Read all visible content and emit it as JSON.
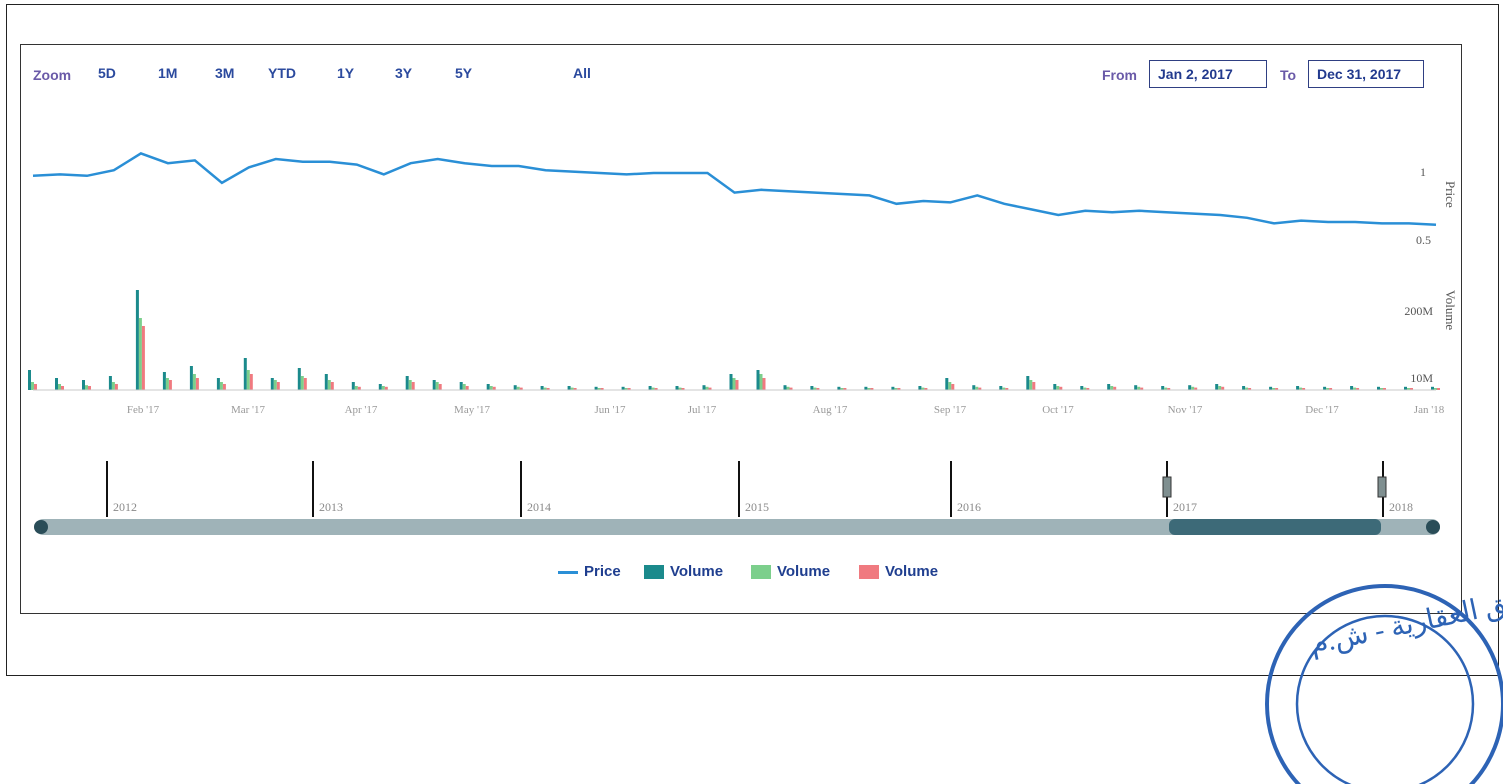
{
  "toolbar": {
    "zoom_label": "Zoom",
    "buttons": [
      "5D",
      "1M",
      "3M",
      "YTD",
      "1Y",
      "3Y",
      "5Y",
      "All"
    ],
    "from_label": "From",
    "from_value": "Jan 2, 2017",
    "to_label": "To",
    "to_value": "Dec 31, 2017"
  },
  "legend": {
    "price": "Price",
    "volume_1": "Volume",
    "volume_2": "Volume",
    "volume_3": "Volume"
  },
  "colors": {
    "price": "#2a8fd6",
    "volume_1": "#1b8a8c",
    "volume_2": "#7ccf8c",
    "volume_3": "#f07a80",
    "accent": "#2b4a9e"
  },
  "stamp_text": "لق العقارية - ش.م",
  "chart_data": {
    "type": "line",
    "price": {
      "ylabel": "Price",
      "ytick_labels": [
        "1",
        "0.5"
      ],
      "x": [
        "Jan 2",
        "Jan 9",
        "Jan 16",
        "Jan 23",
        "Jan 30",
        "Feb 6",
        "Feb 13",
        "Feb 20",
        "Feb 27",
        "Mar 6",
        "Mar 13",
        "Mar 20",
        "Mar 27",
        "Apr 3",
        "Apr 10",
        "Apr 17",
        "Apr 24",
        "May 1",
        "May 8",
        "May 15",
        "May 22",
        "May 29",
        "Jun 5",
        "Jun 12",
        "Jun 19",
        "Jun 26",
        "Jul 3",
        "Jul 10",
        "Jul 17",
        "Jul 24",
        "Jul 31",
        "Aug 7",
        "Aug 14",
        "Aug 21",
        "Aug 28",
        "Sep 4",
        "Sep 11",
        "Sep 18",
        "Sep 25",
        "Oct 2",
        "Oct 9",
        "Oct 16",
        "Oct 23",
        "Oct 30",
        "Nov 6",
        "Nov 13",
        "Nov 20",
        "Nov 27",
        "Dec 4",
        "Dec 11",
        "Dec 18",
        "Dec 25",
        "Dec 31"
      ],
      "values": [
        0.98,
        0.99,
        0.98,
        1.02,
        1.14,
        1.07,
        1.09,
        0.93,
        1.04,
        1.1,
        1.08,
        1.08,
        1.06,
        0.99,
        1.07,
        1.1,
        1.07,
        1.05,
        1.05,
        1.02,
        1.01,
        1.0,
        0.99,
        1.0,
        1.0,
        1.0,
        0.86,
        0.88,
        0.87,
        0.86,
        0.85,
        0.84,
        0.78,
        0.8,
        0.79,
        0.84,
        0.78,
        0.74,
        0.7,
        0.73,
        0.72,
        0.73,
        0.72,
        0.71,
        0.7,
        0.68,
        0.64,
        0.66,
        0.65,
        0.65,
        0.64,
        0.64,
        0.63
      ]
    },
    "volume": {
      "ylabel": "Volume",
      "ytick_labels": [
        "200M",
        "10M"
      ],
      "series": [
        {
          "values": [
            50,
            30,
            25,
            35,
            250,
            45,
            60,
            30,
            80,
            30,
            55,
            40,
            20,
            15,
            35,
            25,
            20,
            15,
            12,
            10,
            10,
            8,
            8,
            10,
            10,
            12,
            40,
            50,
            12,
            10,
            8,
            8,
            8,
            10,
            30,
            12,
            10,
            35,
            15,
            10,
            15,
            12,
            10,
            12,
            15,
            10,
            8,
            10,
            8,
            10,
            8,
            8,
            8
          ]
        },
        {
          "values": [
            20,
            15,
            12,
            20,
            180,
            30,
            40,
            20,
            50,
            25,
            35,
            25,
            10,
            10,
            25,
            20,
            15,
            10,
            8,
            6,
            6,
            5,
            5,
            6,
            6,
            8,
            30,
            40,
            8,
            6,
            5,
            5,
            5,
            6,
            20,
            8,
            6,
            25,
            10,
            6,
            10,
            8,
            6,
            8,
            10,
            6,
            5,
            6,
            5,
            6,
            5,
            5,
            5
          ]
        },
        {
          "values": [
            15,
            10,
            10,
            15,
            160,
            25,
            30,
            15,
            40,
            20,
            30,
            20,
            8,
            8,
            20,
            15,
            10,
            8,
            6,
            5,
            5,
            4,
            4,
            5,
            5,
            6,
            25,
            30,
            6,
            5,
            4,
            4,
            4,
            5,
            15,
            6,
            5,
            20,
            8,
            5,
            8,
            6,
            5,
            6,
            8,
            5,
            4,
            5,
            4,
            5,
            4,
            4,
            4
          ]
        }
      ]
    },
    "x_tick_labels": [
      "Feb '17",
      "Mar '17",
      "Apr '17",
      "May '17",
      "Jun '17",
      "Jul '17",
      "Aug '17",
      "Sep '17",
      "Oct '17",
      "Nov '17",
      "Dec '17",
      "Jan '18"
    ],
    "navigator": {
      "year_labels": [
        "2012",
        "2013",
        "2014",
        "2015",
        "2016",
        "2017",
        "2018"
      ],
      "selected": [
        "2017",
        "2018"
      ]
    }
  }
}
